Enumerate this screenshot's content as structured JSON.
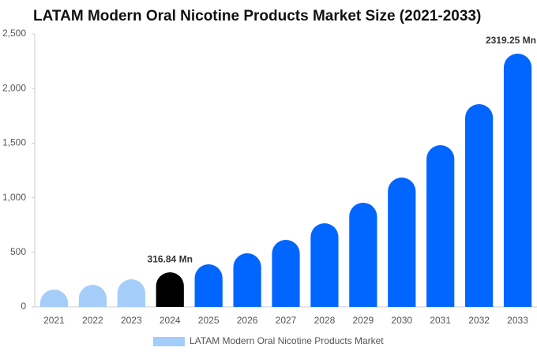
{
  "chart_data": {
    "type": "bar",
    "title": "LATAM Modern Oral Nicotine Products Market Size (2021-2033)",
    "categories": [
      "2021",
      "2022",
      "2023",
      "2024",
      "2025",
      "2026",
      "2027",
      "2028",
      "2029",
      "2030",
      "2031",
      "2032",
      "2033"
    ],
    "series": [
      {
        "name": "LATAM Modern Oral Nicotine Products Market",
        "color": "#a4cdfa",
        "colors": [
          "#a4cdfa",
          "#a4cdfa",
          "#a4cdfa",
          "#000000",
          "#0066ff",
          "#0066ff",
          "#0066ff",
          "#0066ff",
          "#0066ff",
          "#0066ff",
          "#0066ff",
          "#0066ff",
          "#0066ff"
        ],
        "values": [
          159,
          202,
          253,
          316.84,
          390,
          491,
          614,
          766,
          954,
          1185,
          1481,
          1857,
          2319.25
        ],
        "value_labels": [
          null,
          null,
          null,
          "316.84 Mn",
          null,
          null,
          null,
          null,
          null,
          null,
          null,
          null,
          "2319.25 Mn"
        ]
      }
    ],
    "ylim": [
      0,
      2500
    ],
    "yticks": [
      0,
      500,
      {
        "value": 1000,
        "label": "1,000"
      },
      {
        "value": 1500,
        "label": "1,500"
      },
      {
        "value": 2000,
        "label": "2,000"
      },
      {
        "value": 2500,
        "label": "2,500"
      }
    ],
    "legend": "bottom"
  }
}
